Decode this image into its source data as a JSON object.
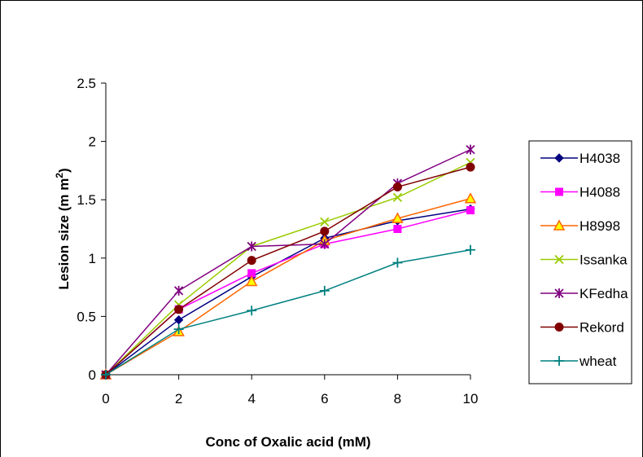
{
  "chart_data": {
    "type": "line",
    "xlabel": "Conc of Oxalic acid (mM)",
    "ylabel": "Lesion size (mm²)",
    "ylabel_parts": {
      "main": "Lesion size (m m",
      "sup": "2",
      "end": ")"
    },
    "x": [
      0,
      2,
      4,
      6,
      8,
      10
    ],
    "x_ticks": [
      "0",
      "2",
      "4",
      "6",
      "8",
      "10"
    ],
    "y_ticks": [
      "0",
      "0.5",
      "1",
      "1.5",
      "2",
      "2.5"
    ],
    "xlim": [
      0,
      10
    ],
    "ylim": [
      0,
      2.5
    ],
    "grid": false,
    "legend_position": "right",
    "series": [
      {
        "name": "H4038",
        "color": "#000080",
        "marker": "diamond",
        "values": [
          0,
          0.47,
          0.84,
          1.17,
          1.32,
          1.42
        ]
      },
      {
        "name": "H4088",
        "color": "#ff00ff",
        "marker": "square",
        "values": [
          0,
          0.56,
          0.87,
          1.12,
          1.25,
          1.41
        ]
      },
      {
        "name": "H8998",
        "color": "#ff6600",
        "marker": "triangle",
        "values": [
          0,
          0.37,
          0.8,
          1.15,
          1.34,
          1.51
        ]
      },
      {
        "name": "Issanka",
        "color": "#99cc00",
        "marker": "x",
        "values": [
          0,
          0.6,
          1.1,
          1.31,
          1.52,
          1.82
        ]
      },
      {
        "name": "KFedha",
        "color": "#800080",
        "marker": "star",
        "values": [
          0,
          0.72,
          1.1,
          1.12,
          1.64,
          1.93
        ]
      },
      {
        "name": "Rekord",
        "color": "#800000",
        "marker": "circle",
        "values": [
          0,
          0.56,
          0.98,
          1.23,
          1.61,
          1.78
        ]
      },
      {
        "name": "wheat",
        "color": "#008080",
        "marker": "plus",
        "values": [
          0,
          0.39,
          0.55,
          0.72,
          0.96,
          1.07
        ]
      }
    ]
  }
}
